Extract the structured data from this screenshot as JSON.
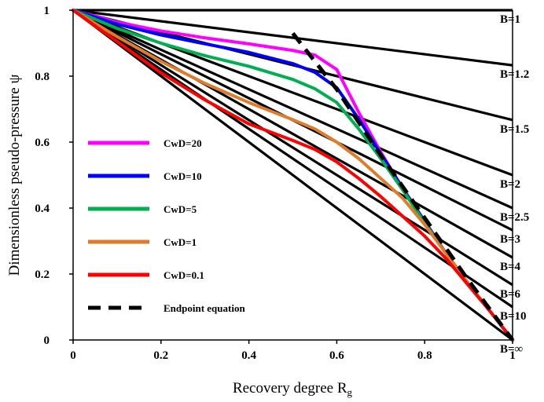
{
  "chart_data": {
    "type": "line",
    "title": "",
    "xlabel": "Recovery degree R",
    "xlabel_sub": "g",
    "ylabel": "Dimensionless pseudo-pressure ψ",
    "xlim": [
      0,
      1
    ],
    "ylim": [
      0,
      1
    ],
    "xticks": [
      "0",
      "0.2",
      "0.4",
      "0.6",
      "0.8",
      "1"
    ],
    "yticks": [
      "0",
      "0.2",
      "0.4",
      "0.6",
      "0.8",
      "1"
    ],
    "grid": false,
    "legend_position": "left",
    "b_curves": [
      {
        "label": "B=1",
        "end_y": 1.0
      },
      {
        "label": "B=1.2",
        "end_y": 0.833
      },
      {
        "label": "B=1.5",
        "end_y": 0.667
      },
      {
        "label": "B=2",
        "end_y": 0.5
      },
      {
        "label": "B=2.5",
        "end_y": 0.4
      },
      {
        "label": "B=3",
        "end_y": 0.333
      },
      {
        "label": "B=4",
        "end_y": 0.25
      },
      {
        "label": "B=6",
        "end_y": 0.167
      },
      {
        "label": "B=10",
        "end_y": 0.1
      },
      {
        "label": "B=∞",
        "end_y": 0.0
      }
    ],
    "series": [
      {
        "name": "CwD=20",
        "color": "#ff00ff",
        "x": [
          0,
          0.1,
          0.2,
          0.3,
          0.4,
          0.5,
          0.55,
          0.6,
          0.65,
          0.7,
          0.75,
          0.8,
          0.85,
          0.9,
          0.95,
          1.0
        ],
        "y": [
          1.0,
          0.964,
          0.937,
          0.916,
          0.898,
          0.878,
          0.864,
          0.82,
          0.69,
          0.57,
          0.46,
          0.36,
          0.26,
          0.17,
          0.085,
          0.0
        ]
      },
      {
        "name": "CwD=10",
        "color": "#0000ff",
        "x": [
          0,
          0.1,
          0.2,
          0.3,
          0.4,
          0.5,
          0.55,
          0.6,
          0.65,
          0.7,
          0.75,
          0.8,
          0.85,
          0.9,
          0.95,
          1.0
        ],
        "y": [
          1.0,
          0.958,
          0.925,
          0.898,
          0.872,
          0.838,
          0.812,
          0.765,
          0.67,
          0.565,
          0.46,
          0.36,
          0.26,
          0.17,
          0.085,
          0.0
        ]
      },
      {
        "name": "CwD=5",
        "color": "#00b050",
        "x": [
          0,
          0.1,
          0.2,
          0.3,
          0.4,
          0.5,
          0.55,
          0.6,
          0.65,
          0.7,
          0.75,
          0.8,
          0.85,
          0.9,
          0.95,
          1.0
        ],
        "y": [
          1.0,
          0.945,
          0.9,
          0.862,
          0.83,
          0.79,
          0.762,
          0.72,
          0.64,
          0.55,
          0.455,
          0.355,
          0.26,
          0.17,
          0.085,
          0.0
        ]
      },
      {
        "name": "CwD=1",
        "color": "#e07b2a",
        "x": [
          0,
          0.1,
          0.2,
          0.3,
          0.4,
          0.5,
          0.55,
          0.6,
          0.65,
          0.7,
          0.75,
          0.8,
          0.85,
          0.9,
          0.95,
          1.0
        ],
        "y": [
          1.0,
          0.92,
          0.845,
          0.778,
          0.72,
          0.668,
          0.64,
          0.6,
          0.55,
          0.49,
          0.43,
          0.35,
          0.26,
          0.17,
          0.085,
          0.0
        ]
      },
      {
        "name": "CwD=0.1",
        "color": "#ff0000",
        "x": [
          0,
          0.1,
          0.2,
          0.3,
          0.4,
          0.5,
          0.55,
          0.6,
          0.65,
          0.7,
          0.75,
          0.8,
          0.85,
          0.9,
          0.95,
          1.0
        ],
        "y": [
          1.0,
          0.905,
          0.81,
          0.728,
          0.655,
          0.605,
          0.578,
          0.54,
          0.49,
          0.435,
          0.375,
          0.315,
          0.245,
          0.165,
          0.085,
          0.0
        ]
      },
      {
        "name": "Endpoint equation",
        "color": "#000000",
        "dashed": true,
        "x": [
          0.5,
          0.6,
          0.7,
          0.8,
          0.9,
          1.0
        ],
        "y": [
          0.93,
          0.76,
          0.56,
          0.37,
          0.18,
          0.0
        ]
      }
    ],
    "legend": [
      {
        "name": "CwD=20",
        "color": "#ff00ff"
      },
      {
        "name": "CwD=10",
        "color": "#0000ff"
      },
      {
        "name": "CwD=5",
        "color": "#00b050"
      },
      {
        "name": "CwD=1",
        "color": "#e07b2a"
      },
      {
        "name": "CwD=0.1",
        "color": "#ff0000"
      },
      {
        "name": "Endpoint equation",
        "color": "#000000",
        "dashed": true
      }
    ]
  }
}
